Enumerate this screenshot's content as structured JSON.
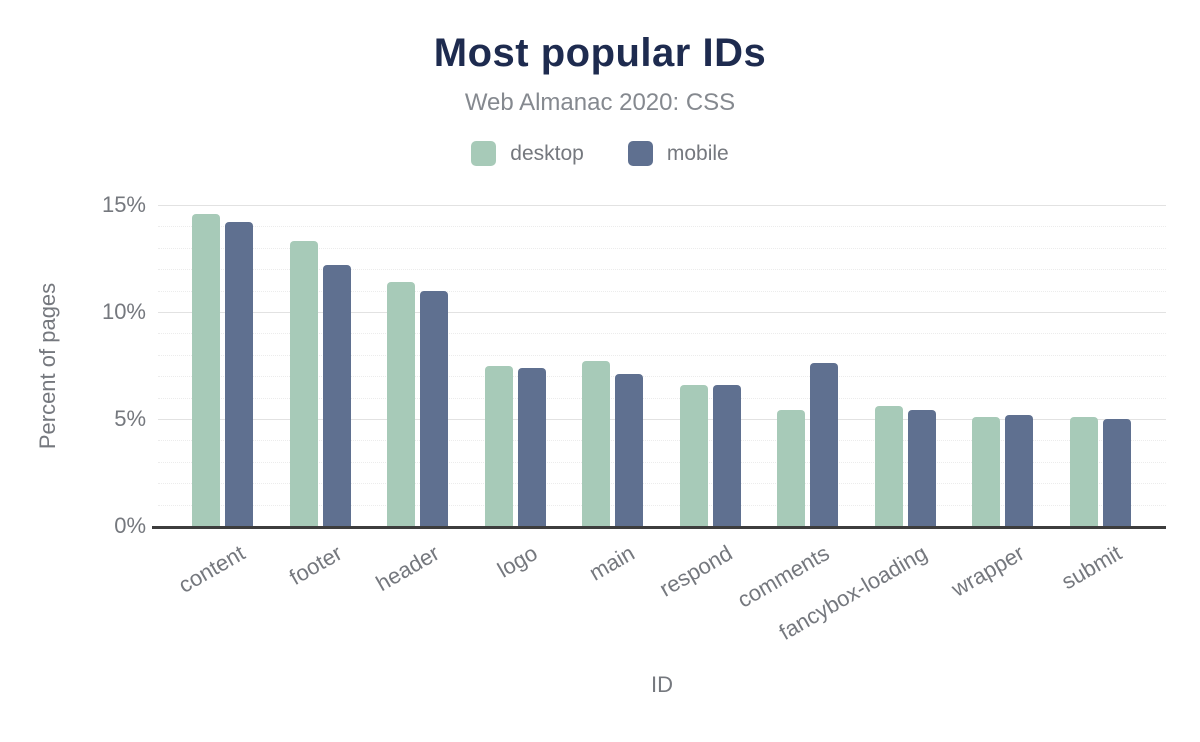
{
  "chart_data": {
    "type": "bar",
    "title": "Most popular IDs",
    "subtitle": "Web Almanac 2020: CSS",
    "xlabel": "ID",
    "ylabel": "Percent of pages",
    "categories": [
      "content",
      "footer",
      "header",
      "logo",
      "main",
      "respond",
      "comments",
      "fancybox-loading",
      "wrapper",
      "submit"
    ],
    "series": [
      {
        "name": "desktop",
        "color": "#a7cab8",
        "values": [
          14.6,
          13.3,
          11.4,
          7.5,
          7.7,
          6.6,
          5.4,
          5.6,
          5.1,
          5.1
        ]
      },
      {
        "name": "mobile",
        "color": "#5f7090",
        "values": [
          14.2,
          12.2,
          11.0,
          7.4,
          7.1,
          6.6,
          7.6,
          5.4,
          5.2,
          5.0
        ]
      }
    ],
    "ylim": [
      0,
      15
    ],
    "y_ticks": [
      {
        "value": 0,
        "label": "0%"
      },
      {
        "value": 5,
        "label": "5%"
      },
      {
        "value": 10,
        "label": "10%"
      },
      {
        "value": 15,
        "label": "15%"
      }
    ],
    "y_minor_step": 1,
    "grid": "on",
    "legend_position": "top",
    "x_label_rotation": -30,
    "colors": {
      "title": "#1e2b4f",
      "subtitle": "#85898f",
      "axis_text": "#75787e",
      "axis_line": "#3d3d3d",
      "grid_minor": "#ececec",
      "grid_major": "#e2e2e2",
      "background": "#ffffff"
    }
  }
}
